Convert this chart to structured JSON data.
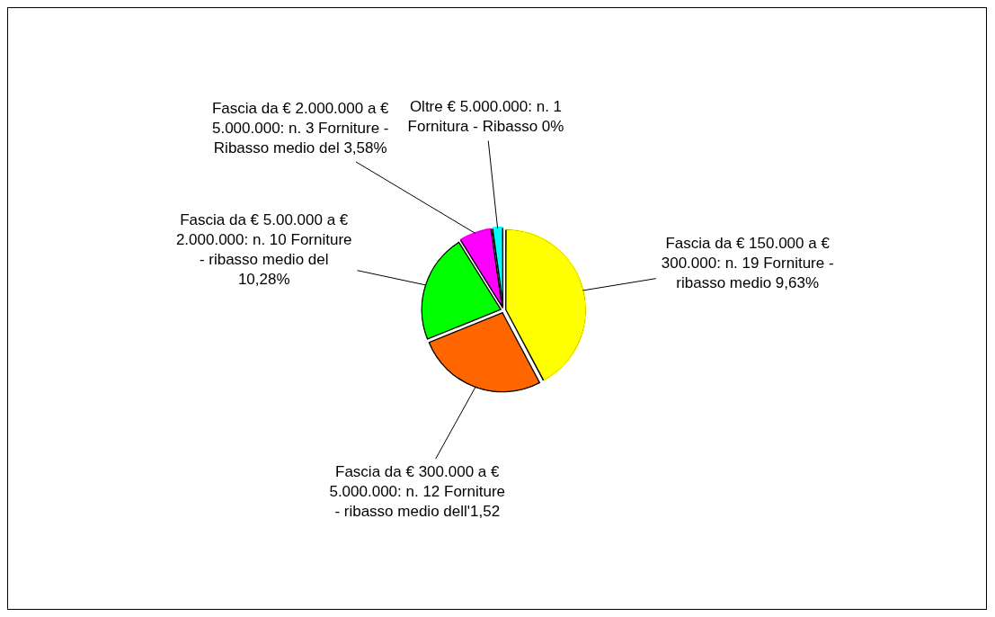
{
  "chart_data": {
    "type": "pie",
    "categories": [
      "Fascia da € 150.000 a € 300.000: n. 19 Forniture - ribasso medio 9,63%",
      "Fascia da € 300.000 a € 5.000.000: n. 12 Forniture - ribasso medio dell'1,52",
      "Fascia da € 5.00.000 a € 2.000.000: n. 10 Forniture - ribasso medio del 10,28%",
      "Fascia da € 2.000.000 a € 5.000.000: n. 3 Forniture - Ribasso medio del 3,58%",
      "Oltre € 5.000.000: n. 1 Fornitura - Ribasso 0%"
    ],
    "values": [
      19,
      12,
      10,
      3,
      1
    ],
    "colors": [
      "#ffff00",
      "#ff6600",
      "#00ff00",
      "#ff00ff",
      "#00ffff"
    ],
    "legend": false
  }
}
